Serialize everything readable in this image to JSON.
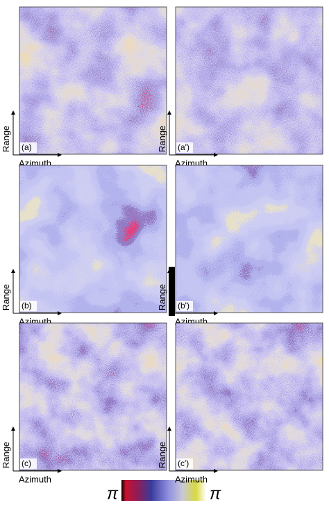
{
  "panels": [
    {
      "label": "(a)",
      "y_label": "Range",
      "x_label": "Azimuth"
    },
    {
      "label": "(a')",
      "y_label": "Range",
      "x_label": "Azimuth"
    },
    {
      "label": "(b)",
      "y_label": "Range",
      "x_label": "Azimuth"
    },
    {
      "label": "(b')",
      "y_label": "Range",
      "x_label": "Azimuth"
    },
    {
      "label": "(c)",
      "y_label": "Range",
      "x_label": "Azimuth"
    },
    {
      "label": "(c')",
      "y_label": "Range",
      "x_label": "Azimuth"
    }
  ],
  "colorbar": {
    "left_label": "π",
    "right_label": "π"
  }
}
